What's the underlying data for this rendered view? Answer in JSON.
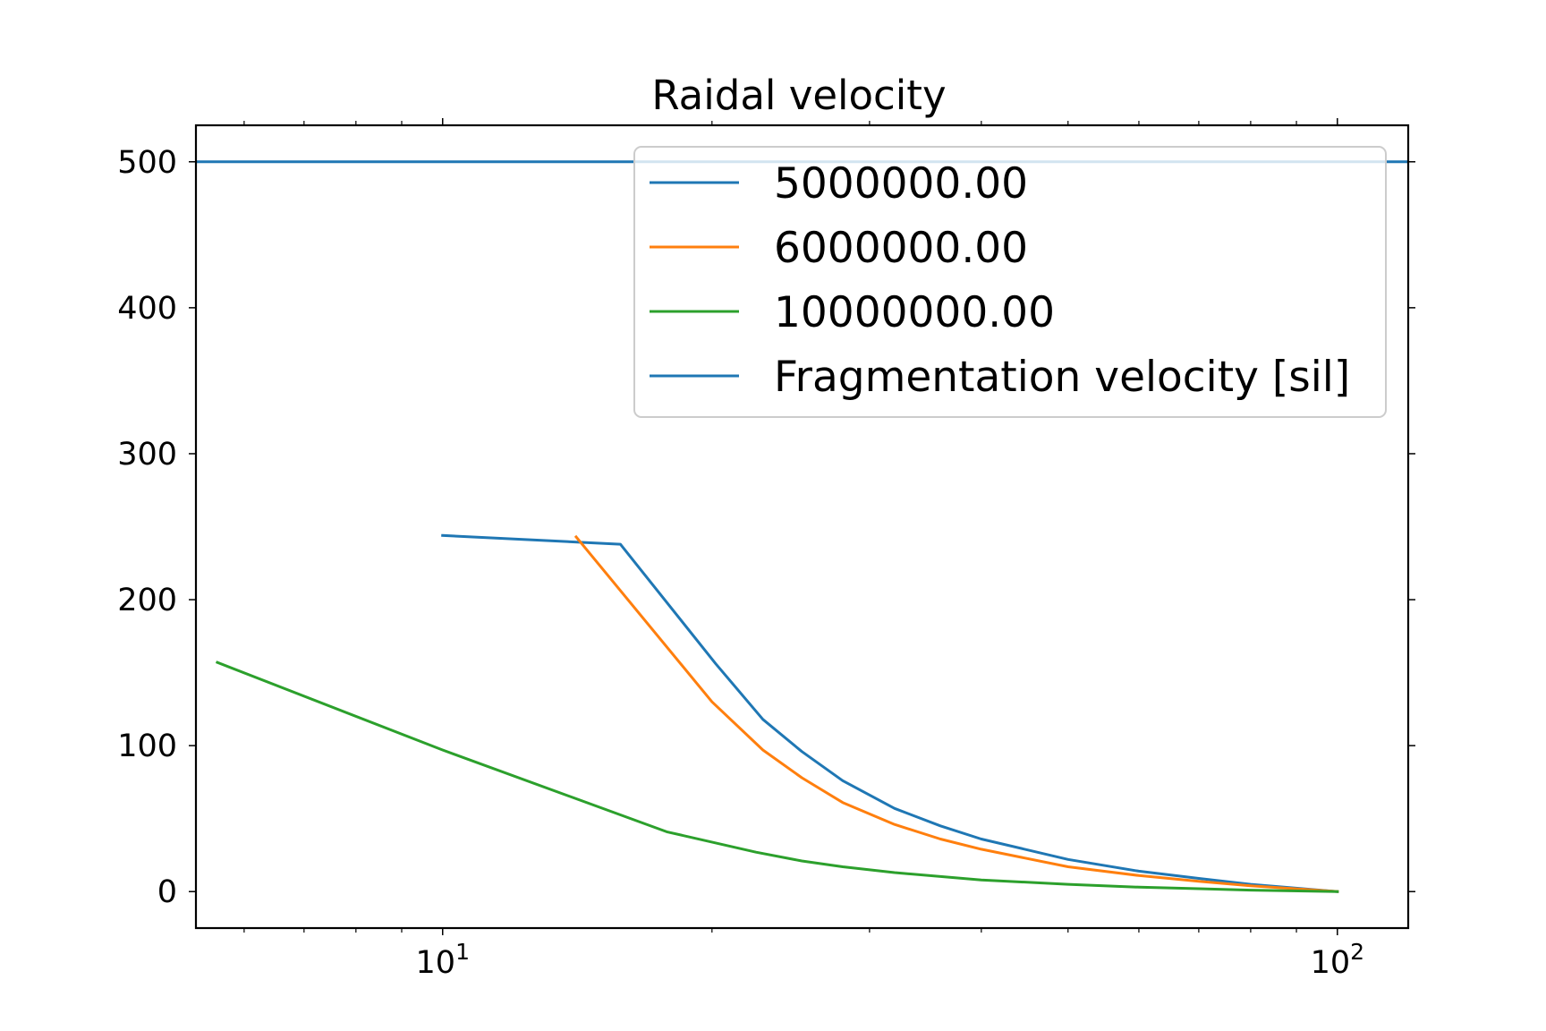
{
  "chart_data": {
    "type": "line",
    "title": "Raidal velocity",
    "xlabel": "",
    "ylabel": "",
    "xscale": "log",
    "xlim": [
      5.3,
      120
    ],
    "ylim": [
      -25,
      525
    ],
    "grid": false,
    "legend_position": "upper right",
    "x_ticks": [
      {
        "value": 10,
        "base": "10",
        "exp": "1"
      },
      {
        "value": 100,
        "base": "10",
        "exp": "2"
      }
    ],
    "y_ticks": [
      0,
      100,
      200,
      300,
      400,
      500
    ],
    "series": [
      {
        "name": "5000000.00",
        "color": "#1f77b4",
        "x": [
          10,
          15.8,
          20.2,
          22.8,
          25.2,
          28,
          32,
          36,
          40,
          50,
          60,
          70,
          80,
          100
        ],
        "y": [
          244,
          238,
          156,
          118,
          96,
          76,
          57,
          45,
          36,
          22,
          14,
          9,
          5,
          0
        ]
      },
      {
        "name": "6000000.00",
        "color": "#ff7f0e",
        "x": [
          14.1,
          20,
          22.8,
          25.2,
          28,
          32,
          36,
          40,
          50,
          60,
          70,
          80,
          100
        ],
        "y": [
          243,
          130,
          97,
          78,
          61,
          46,
          36,
          29,
          17,
          11,
          7,
          4,
          0
        ]
      },
      {
        "name": "10000000.00",
        "color": "#2ca02c",
        "x": [
          5.6,
          10,
          17.8,
          22.4,
          25.2,
          28,
          32,
          40,
          50,
          60,
          70,
          80,
          100
        ],
        "y": [
          157,
          97,
          41,
          27,
          21,
          17,
          13,
          8,
          5,
          3,
          2,
          1,
          0
        ]
      },
      {
        "name": "Fragmentation velocity [sil]",
        "color": "#1f77b4",
        "x": [
          5.3,
          120
        ],
        "y": [
          500,
          500
        ]
      }
    ]
  }
}
